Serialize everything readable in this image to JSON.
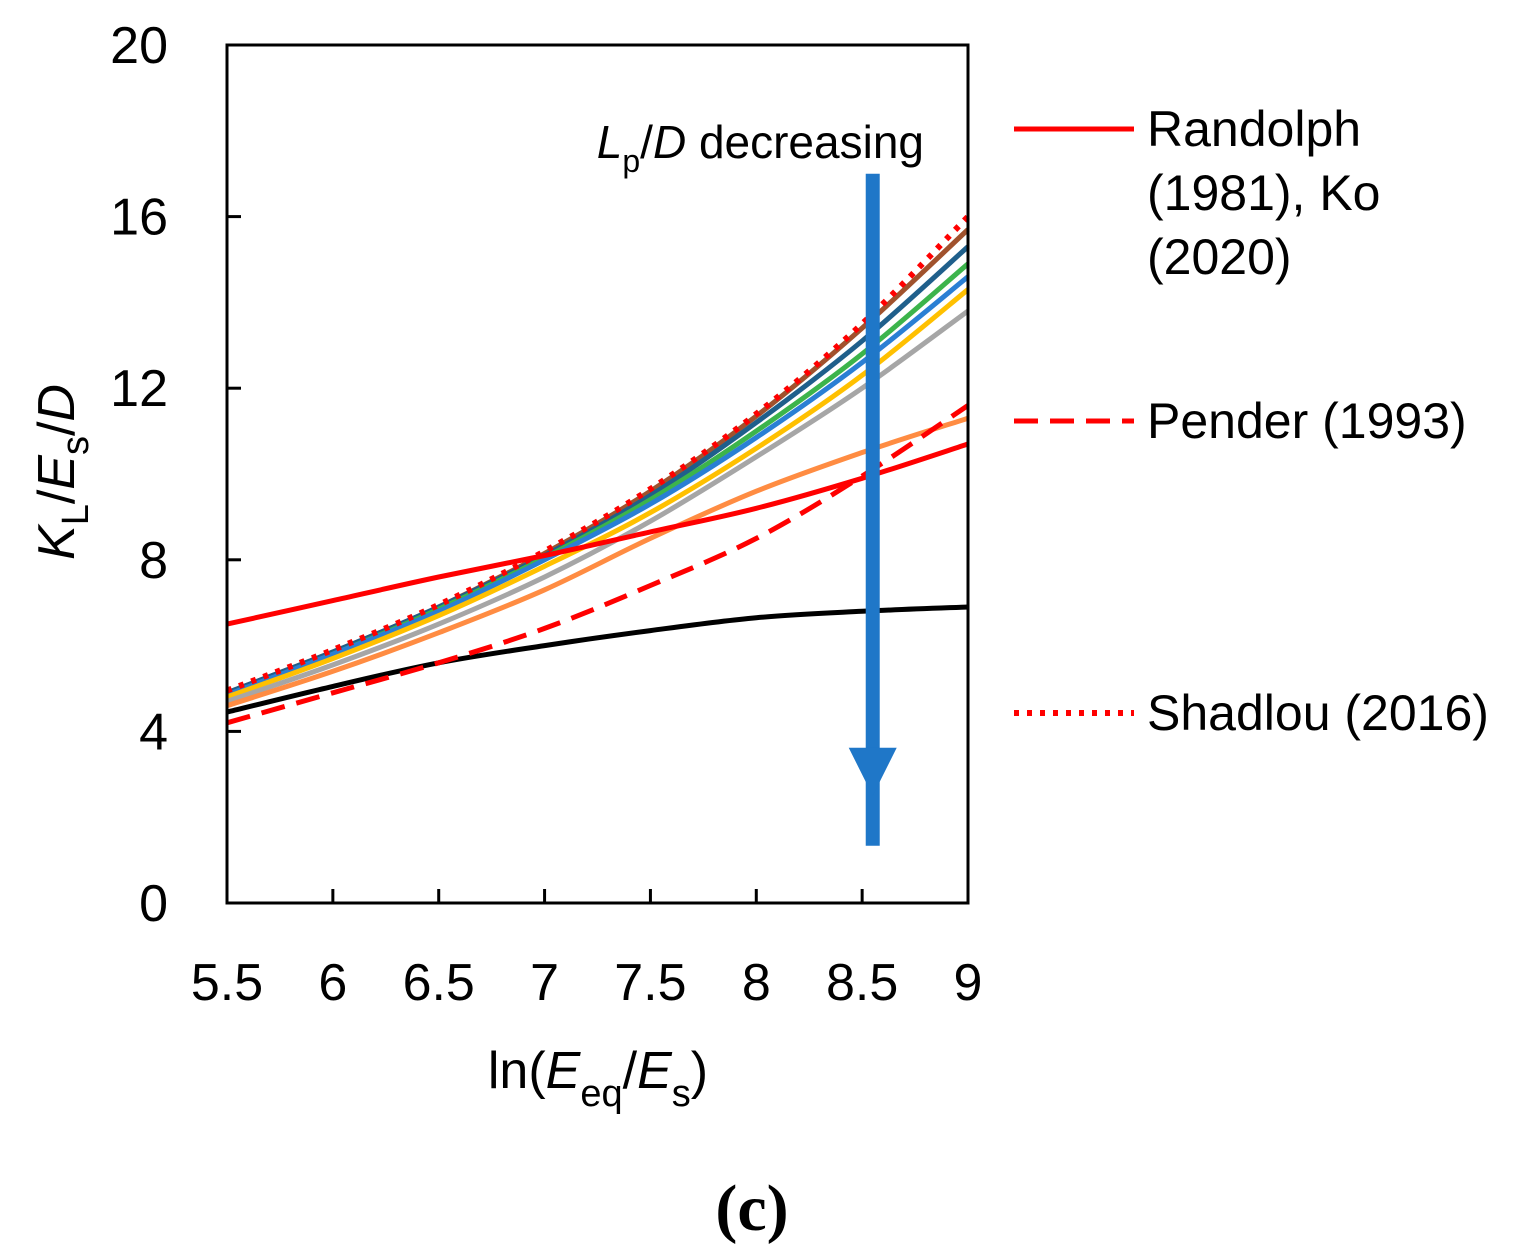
{
  "chart_data": {
    "type": "line",
    "xlabel": {
      "base": "ln(",
      "sym1": "E",
      "sub1": "eq",
      "mid": "/",
      "sym2": "E",
      "sub2": "s",
      "end": ")"
    },
    "ylabel": {
      "k": "K",
      "k_sub": "L",
      "slash1": "/",
      "e": "E",
      "e_sub": "s",
      "slash2": "/",
      "d": "D"
    },
    "xlim": [
      5.5,
      9
    ],
    "ylim": [
      0,
      20
    ],
    "xticks": [
      "5.5",
      "6",
      "6.5",
      "7",
      "7.5",
      "8",
      "8.5",
      "9"
    ],
    "yticks": [
      "0",
      "4",
      "8",
      "12",
      "16",
      "20"
    ],
    "grid": false,
    "legend_position": "right",
    "legend": [
      {
        "lines": [
          "Randolph",
          "(1981), Ko",
          "(2020)"
        ],
        "style": "solid",
        "color": "#ff0000"
      },
      {
        "lines": [
          "Pender (1993)"
        ],
        "style": "dashed",
        "color": "#ff0000"
      },
      {
        "lines": [
          "Shadlou (2016)"
        ],
        "style": "dotted",
        "color": "#ff0000"
      }
    ],
    "annotation": {
      "lp": "L",
      "lp_sub": "p",
      "rest1": "/",
      "d": "D",
      "rest2": " decreasing",
      "arrow_x": 8.55,
      "arrow_from_y": 17,
      "arrow_to_y": 2.5,
      "arrow_color": "#1f77c8"
    },
    "series": [
      {
        "color": "#a0522d",
        "style": "solid",
        "x": [
          5.5,
          6,
          6.5,
          7,
          7.5,
          8,
          8.5,
          9
        ],
        "y": [
          4.9,
          5.85,
          6.9,
          8.15,
          9.6,
          11.35,
          13.4,
          15.7
        ]
      },
      {
        "color": "#1f5f8b",
        "style": "solid",
        "x": [
          5.5,
          6,
          6.5,
          7,
          7.5,
          8,
          8.5,
          9
        ],
        "y": [
          4.9,
          5.85,
          6.9,
          8.1,
          9.5,
          11.2,
          13.1,
          15.3
        ]
      },
      {
        "color": "#3cb44b",
        "style": "solid",
        "x": [
          5.5,
          6,
          6.5,
          7,
          7.5,
          8,
          8.5,
          9
        ],
        "y": [
          4.85,
          5.8,
          6.85,
          8.05,
          9.4,
          11.0,
          12.8,
          14.9
        ]
      },
      {
        "color": "#2a7fd4",
        "style": "solid",
        "x": [
          5.5,
          6,
          6.5,
          7,
          7.5,
          8,
          8.5,
          9
        ],
        "y": [
          4.85,
          5.8,
          6.8,
          8.0,
          9.3,
          10.85,
          12.6,
          14.6
        ]
      },
      {
        "color": "#ffc000",
        "style": "solid",
        "x": [
          5.5,
          6,
          6.5,
          7,
          7.5,
          8,
          8.5,
          9
        ],
        "y": [
          4.8,
          5.7,
          6.7,
          7.85,
          9.1,
          10.6,
          12.3,
          14.3
        ]
      },
      {
        "color": "#a6a6a6",
        "style": "solid",
        "x": [
          5.5,
          6,
          6.5,
          7,
          7.5,
          8,
          8.5,
          9
        ],
        "y": [
          4.7,
          5.55,
          6.5,
          7.6,
          8.9,
          10.4,
          12.0,
          13.8
        ]
      },
      {
        "color": "#ff8c42",
        "style": "solid",
        "x": [
          5.5,
          6,
          6.5,
          7,
          7.5,
          8,
          8.5,
          9
        ],
        "y": [
          4.6,
          5.4,
          6.3,
          7.3,
          8.5,
          9.6,
          10.5,
          11.3
        ]
      },
      {
        "color": "#000000",
        "style": "solid",
        "x": [
          5.5,
          6,
          6.5,
          7,
          7.5,
          8,
          8.5,
          9
        ],
        "y": [
          4.45,
          5.05,
          5.6,
          6.0,
          6.35,
          6.65,
          6.8,
          6.9
        ]
      },
      {
        "color": "#ff0000",
        "style": "solid",
        "x": [
          5.5,
          6,
          6.5,
          7,
          7.5,
          8,
          8.5,
          9
        ],
        "y": [
          6.5,
          7.05,
          7.6,
          8.1,
          8.65,
          9.2,
          9.9,
          10.7
        ]
      },
      {
        "color": "#ff0000",
        "style": "dashed",
        "x": [
          5.5,
          6,
          6.5,
          7,
          7.5,
          8,
          8.5,
          9
        ],
        "y": [
          4.2,
          4.9,
          5.6,
          6.4,
          7.4,
          8.5,
          9.95,
          11.6
        ]
      },
      {
        "color": "#ff0000",
        "style": "dotted",
        "x": [
          5.5,
          6,
          6.5,
          7,
          7.5,
          8,
          8.5,
          9
        ],
        "y": [
          4.95,
          5.9,
          6.95,
          8.2,
          9.65,
          11.4,
          13.5,
          16.0
        ]
      }
    ],
    "panel_label": "(c)"
  }
}
